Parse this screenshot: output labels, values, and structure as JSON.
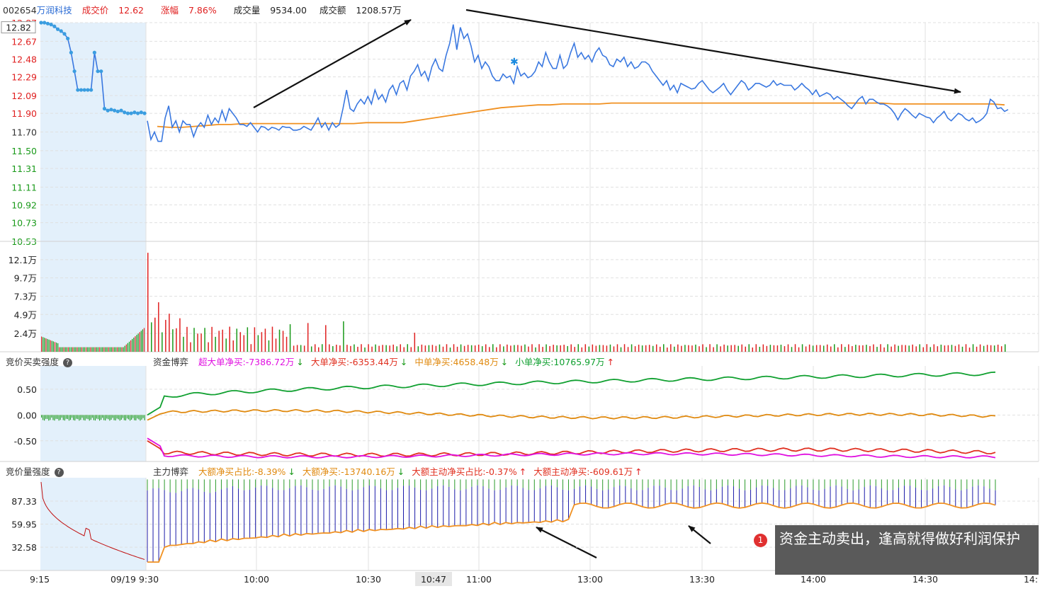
{
  "header": {
    "code": "002654",
    "name": "万润科技",
    "price_label": "成交价",
    "price": "12.62",
    "change_label": "涨幅",
    "change": "7.86%",
    "volume_label": "成交量",
    "volume": "9534.00",
    "amount_label": "成交额",
    "amount": "1208.57万"
  },
  "colors": {
    "price_line": "#3a78e0",
    "avg_line": "#f09020",
    "up": "#e02020",
    "down": "#1a9a1a",
    "auction_bg": "#e3f0fb",
    "grid": "#e0e0e0"
  },
  "chart_data": [
    {
      "type": "line",
      "panel": "price",
      "y_ticks": [
        "12.87",
        "12.67",
        "12.48",
        "12.29",
        "12.09",
        "11.90",
        "11.70",
        "11.50",
        "11.31",
        "11.11",
        "10.92",
        "10.73",
        "10.53"
      ],
      "ylim": [
        10.53,
        12.87
      ],
      "cursor_price": "12.82",
      "x_ticks": [
        "9:15",
        "09/19 9:30",
        "10:00",
        "10:30",
        "10:47",
        "11:00",
        "13:00",
        "13:30",
        "14:00",
        "14:30",
        "14:"
      ],
      "series": [
        {
          "role": "auction",
          "values": [
            12.87,
            12.87,
            12.86,
            12.85,
            12.83,
            12.8,
            12.78,
            12.75,
            12.7,
            12.55,
            12.35,
            12.15,
            12.15,
            12.15,
            12.15,
            12.15,
            12.55,
            12.35,
            12.35,
            11.95,
            11.93,
            11.94,
            11.93,
            11.92,
            11.93,
            11.91,
            11.9,
            11.9,
            11.91,
            11.9,
            11.91,
            11.9
          ]
        },
        {
          "role": "price",
          "values": [
            11.82,
            11.62,
            11.7,
            11.6,
            11.6,
            11.85,
            11.98,
            11.75,
            11.82,
            11.7,
            11.82,
            11.78,
            11.78,
            11.65,
            11.75,
            11.8,
            11.75,
            11.88,
            11.78,
            11.85,
            11.8,
            11.93,
            11.82,
            11.95,
            11.9,
            11.85,
            11.78,
            11.78,
            11.76,
            11.8,
            11.75,
            11.7,
            11.76,
            11.75,
            11.72,
            11.75,
            11.74,
            11.72,
            11.76,
            11.75,
            11.75,
            11.72,
            11.72,
            11.73,
            11.76,
            11.74,
            11.72,
            11.78,
            11.85,
            11.75,
            11.8,
            11.72,
            11.8,
            11.75,
            11.78,
            11.95,
            12.15,
            11.95,
            11.92,
            12.0,
            12.05,
            12.0,
            12.08,
            12.0,
            12.15,
            12.05,
            12.1,
            12.02,
            12.15,
            12.2,
            12.1,
            12.22,
            12.25,
            12.15,
            12.3,
            12.35,
            12.42,
            12.3,
            12.35,
            12.25,
            12.4,
            12.48,
            12.38,
            12.35,
            12.52,
            12.65,
            12.85,
            12.58,
            12.82,
            12.7,
            12.75,
            12.62,
            12.45,
            12.52,
            12.38,
            12.45,
            12.4,
            12.3,
            12.25,
            12.25,
            12.32,
            12.28,
            12.3,
            12.22,
            12.4,
            12.3,
            12.33,
            12.28,
            12.3,
            12.35,
            12.45,
            12.4,
            12.55,
            12.45,
            12.38,
            12.38,
            12.52,
            12.38,
            12.42,
            12.55,
            12.65,
            12.5,
            12.55,
            12.48,
            12.52,
            12.45,
            12.55,
            12.6,
            12.52,
            12.5,
            12.42,
            12.4,
            12.48,
            12.45,
            12.5,
            12.4,
            12.45,
            12.38,
            12.4,
            12.45,
            12.45,
            12.42,
            12.35,
            12.3,
            12.25,
            12.2,
            12.25,
            12.15,
            12.2,
            12.12,
            12.22,
            12.2,
            12.18,
            12.16,
            12.17,
            12.22,
            12.25,
            12.2,
            12.15,
            12.12,
            12.15,
            12.18,
            12.22,
            12.15,
            12.1,
            12.15,
            12.2,
            12.25,
            12.22,
            12.15,
            12.18,
            12.22,
            12.22,
            12.2,
            12.18,
            12.2,
            12.25,
            12.2,
            12.22,
            12.2,
            12.2,
            12.2,
            12.15,
            12.18,
            12.22,
            12.18,
            12.15,
            12.1,
            12.15,
            12.08,
            12.1,
            12.12,
            12.1,
            12.05,
            12.08,
            12.05,
            12.02,
            11.98,
            11.95,
            12.0,
            12.05,
            12.08,
            12.0,
            12.05,
            12.05,
            12.02,
            12.0,
            12.0,
            11.98,
            11.95,
            11.9,
            11.83,
            11.9,
            11.95,
            11.92,
            11.88,
            11.85,
            11.9,
            11.88,
            11.86,
            11.85,
            11.8,
            11.85,
            11.88,
            11.92,
            11.85,
            11.82,
            11.86,
            11.9,
            11.88,
            11.84,
            11.82,
            11.85,
            11.8,
            11.82,
            11.85,
            11.9,
            12.05,
            12.02,
            11.95,
            11.96,
            11.92,
            11.94
          ]
        },
        {
          "role": "avg",
          "values": [
            11.76,
            11.75,
            11.75,
            11.76,
            11.77,
            11.78,
            11.78,
            11.79,
            11.79,
            11.79,
            11.79,
            11.79,
            11.79,
            11.79,
            11.79,
            11.79,
            11.79,
            11.8,
            11.8,
            11.8,
            11.8,
            11.82,
            11.84,
            11.86,
            11.88,
            11.9,
            11.92,
            11.94,
            11.96,
            11.97,
            11.98,
            11.99,
            11.99,
            12.0,
            12.0,
            12.0,
            12.0,
            12.01,
            12.01,
            12.01,
            12.01,
            12.01,
            12.01,
            12.01,
            12.01,
            12.01,
            12.01,
            12.01,
            12.01,
            12.01,
            12.01,
            12.01,
            12.01,
            12.01,
            12.01,
            12.01,
            12.01,
            12.01,
            12.01,
            12.01,
            12.0,
            12.0,
            12.0,
            12.0,
            12.0,
            12.0,
            12.0,
            12.0,
            12.0,
            11.99
          ]
        }
      ]
    },
    {
      "type": "bar",
      "panel": "volume",
      "y_ticks": [
        "12.1万",
        "9.7万",
        "7.3万",
        "4.9万",
        "2.4万"
      ],
      "ylim": [
        0,
        14.5
      ]
    },
    {
      "type": "line",
      "panel": "capital",
      "title": "资金博弈",
      "left_title": "竞价买卖强度",
      "y_ticks": [
        "0.50",
        "0.00",
        "-0.50"
      ],
      "ylim": [
        -0.9,
        0.95
      ],
      "legend": [
        {
          "label": "超大单净买:-7386.72万",
          "arrow": "down",
          "color": "#e010e0"
        },
        {
          "label": "大单净买:-6353.44万",
          "arrow": "down",
          "color": "#e03020"
        },
        {
          "label": "中单净买:4658.48万",
          "arrow": "down",
          "color": "#e08a10"
        },
        {
          "label": "小单净买:10765.97万",
          "arrow": "up",
          "color": "#10a030"
        }
      ]
    },
    {
      "type": "bar",
      "panel": "main",
      "title": "主力博弈",
      "left_title": "竞价量强度",
      "y_ticks": [
        "87.33",
        "59.95",
        "32.58"
      ],
      "ylim": [
        5,
        115
      ],
      "legend": [
        {
          "label": "大额净买占比:-8.39%",
          "arrow": "down",
          "color": "#e08a10"
        },
        {
          "label": "大额净买:-13740.16万",
          "arrow": "down",
          "color": "#e08a10"
        },
        {
          "label": "大额主动净买占比:-0.37%",
          "arrow": "up",
          "color": "#e03020"
        },
        {
          "label": "大额主动净买:-609.61万",
          "arrow": "up",
          "color": "#e03020"
        }
      ]
    }
  ],
  "tooltip": {
    "badge": "1",
    "text": "资金主动卖出，逢高就得做好利润保护"
  },
  "icons": [
    "help-icon",
    "arrow-up-icon",
    "arrow-down-icon"
  ]
}
